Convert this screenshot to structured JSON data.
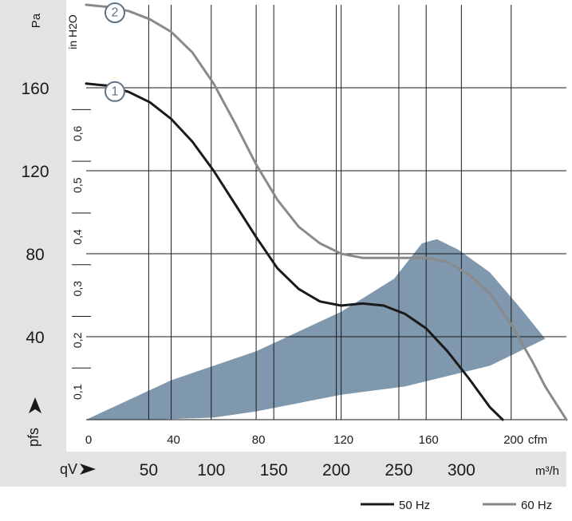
{
  "chart_data": {
    "type": "line",
    "y_unit_left": "Pa",
    "y_unit_right": "in H2O",
    "x_unit_top": "cfm",
    "x_unit_bottom": "m³/h",
    "x_axis_symbol": "qV",
    "y_axis_symbol": "pfs",
    "xlim": [
      0,
      226
    ],
    "ylim": [
      0,
      200
    ],
    "left_ticks": [
      "40",
      "80",
      "120",
      "160"
    ],
    "left_tick_values": [
      40,
      80,
      120,
      160
    ],
    "cfm_ticks": [
      "0",
      "40",
      "80",
      "120",
      "160",
      "200"
    ],
    "cfm_tick_values": [
      0,
      40,
      80,
      120,
      160,
      200
    ],
    "m3h_ticks": [
      "50",
      "100",
      "150",
      "200",
      "250",
      "300"
    ],
    "m3h_tick_values": [
      50,
      100,
      150,
      200,
      250,
      300
    ],
    "inh2o_ticks": [
      "0,1",
      "0,2",
      "0,3",
      "0,4",
      "0,5",
      "0,6"
    ],
    "inh2o_tick_values": [
      0.1,
      0.2,
      0.3,
      0.4,
      0.5,
      0.6
    ],
    "series": [
      {
        "name": "50 Hz",
        "marker": "1",
        "color": "#1a1a1a",
        "x": [
          0,
          10,
          20,
          30,
          40,
          50,
          60,
          70,
          80,
          90,
          100,
          110,
          120,
          130,
          140,
          150,
          160,
          170,
          180,
          190,
          196
        ],
        "y": [
          162,
          161,
          158,
          153,
          145,
          134,
          120,
          104,
          88,
          73,
          63,
          57,
          55,
          56,
          55,
          51,
          44,
          33,
          20,
          6,
          0
        ]
      },
      {
        "name": "60 Hz",
        "marker": "2",
        "color": "#8a8a8a",
        "x": [
          0,
          10,
          20,
          30,
          40,
          50,
          60,
          70,
          80,
          90,
          100,
          110,
          120,
          130,
          140,
          150,
          160,
          170,
          180,
          190,
          200,
          210,
          216,
          226
        ],
        "y": [
          200,
          199,
          197,
          193,
          187,
          177,
          162,
          143,
          123,
          106,
          93,
          85,
          80,
          78,
          78,
          78,
          78,
          76,
          70,
          61,
          46,
          28,
          16,
          0
        ]
      }
    ],
    "operating_area": {
      "color": "#7f98ad",
      "upper": [
        [
          0,
          0
        ],
        [
          40,
          19
        ],
        [
          80,
          33
        ],
        [
          120,
          52
        ],
        [
          145,
          68
        ],
        [
          158,
          85
        ],
        [
          165,
          87
        ],
        [
          175,
          82
        ],
        [
          190,
          71
        ],
        [
          205,
          53
        ],
        [
          216,
          39
        ]
      ],
      "lower": [
        [
          216,
          39
        ],
        [
          190,
          26
        ],
        [
          170,
          21
        ],
        [
          150,
          16
        ],
        [
          120,
          12
        ],
        [
          100,
          8
        ],
        [
          80,
          4
        ],
        [
          60,
          1
        ],
        [
          30,
          0
        ],
        [
          0,
          0
        ]
      ]
    },
    "legend": [
      {
        "label": "50 Hz",
        "color": "#1a1a1a"
      },
      {
        "label": "60 Hz",
        "color": "#8a8a8a"
      }
    ],
    "legend_position": "bottom-right",
    "grid": true
  }
}
